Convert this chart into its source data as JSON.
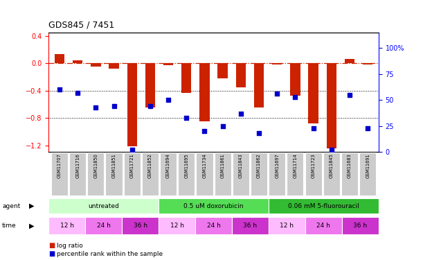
{
  "title": "GDS845 / 7451",
  "samples": [
    "GSM11707",
    "GSM11716",
    "GSM11850",
    "GSM11851",
    "GSM11721",
    "GSM11852",
    "GSM11694",
    "GSM11695",
    "GSM11734",
    "GSM11861",
    "GSM11843",
    "GSM11862",
    "GSM11697",
    "GSM11714",
    "GSM11723",
    "GSM11845",
    "GSM11683",
    "GSM11691"
  ],
  "log_ratio": [
    0.13,
    0.04,
    -0.05,
    -0.08,
    -1.22,
    -0.65,
    -0.03,
    -0.43,
    -0.85,
    -0.22,
    -0.35,
    -0.65,
    -0.02,
    -0.47,
    -0.88,
    -1.25,
    0.06,
    -0.02
  ],
  "percentile": [
    60,
    57,
    43,
    44,
    2,
    44,
    50,
    33,
    20,
    25,
    37,
    18,
    56,
    53,
    23,
    2,
    55,
    23
  ],
  "agents": [
    {
      "label": "untreated",
      "start": 0,
      "end": 6,
      "color": "#ccffcc"
    },
    {
      "label": "0.5 uM doxorubicin",
      "start": 6,
      "end": 12,
      "color": "#55dd55"
    },
    {
      "label": "0.06 mM 5-fluorouracil",
      "start": 12,
      "end": 18,
      "color": "#33bb33"
    }
  ],
  "times": [
    {
      "label": "12 h",
      "start": 0,
      "end": 2,
      "color": "#ffbbff"
    },
    {
      "label": "24 h",
      "start": 2,
      "end": 4,
      "color": "#ee77ee"
    },
    {
      "label": "36 h",
      "start": 4,
      "end": 6,
      "color": "#cc33cc"
    },
    {
      "label": "12 h",
      "start": 6,
      "end": 8,
      "color": "#ffbbff"
    },
    {
      "label": "24 h",
      "start": 8,
      "end": 10,
      "color": "#ee77ee"
    },
    {
      "label": "36 h",
      "start": 10,
      "end": 12,
      "color": "#cc33cc"
    },
    {
      "label": "12 h",
      "start": 12,
      "end": 14,
      "color": "#ffbbff"
    },
    {
      "label": "24 h",
      "start": 14,
      "end": 16,
      "color": "#ee77ee"
    },
    {
      "label": "36 h",
      "start": 16,
      "end": 18,
      "color": "#cc33cc"
    }
  ],
  "bar_color": "#cc2200",
  "dot_color": "#0000cc",
  "ylim_left": [
    -1.3,
    0.45
  ],
  "ylim_right": [
    0,
    115
  ],
  "yticks_left": [
    -1.2,
    -0.8,
    -0.4,
    0.0,
    0.4
  ],
  "yticks_right": [
    0,
    25,
    50,
    75,
    100
  ],
  "n_samples": 18
}
